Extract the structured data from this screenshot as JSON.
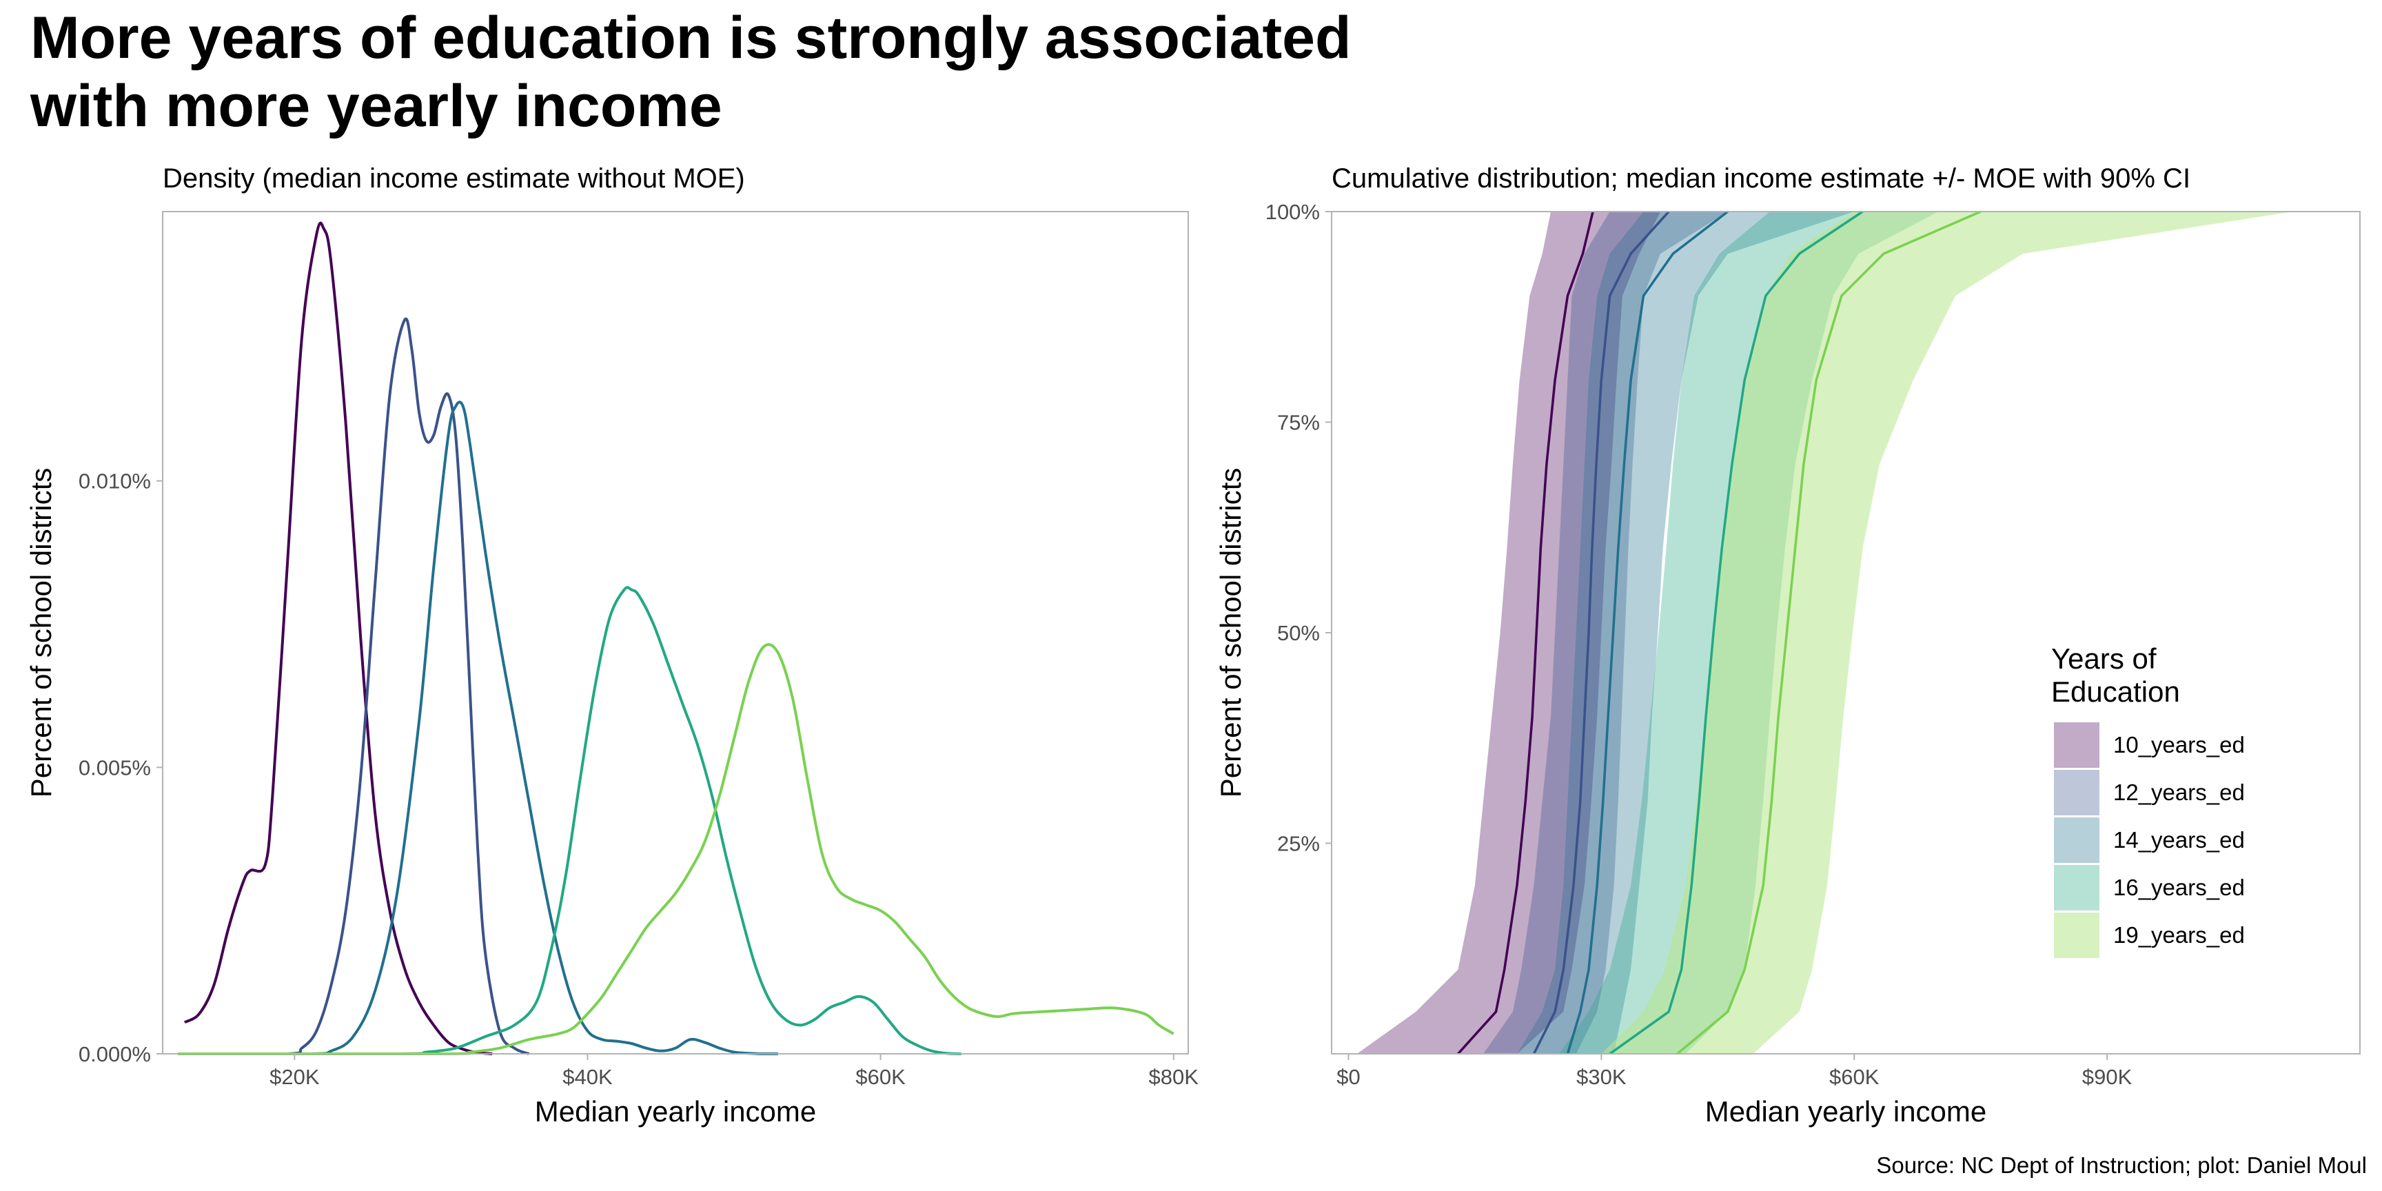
{
  "title": {
    "line1": "More years of education is strongly associated",
    "line2": "with more yearly income"
  },
  "source": "Source: NC Dept of Instruction; plot: Daniel Moul",
  "legend": {
    "title_line1": "Years of",
    "title_line2": "Education",
    "position": "right, inside cumulative panel"
  },
  "colors": {
    "10_years_ed": "#440154",
    "12_years_ed": "#3b528b",
    "14_years_ed": "#21708e",
    "16_years_ed": "#22a884",
    "19_years_ed": "#7ad151",
    "line_19_years_ed": "#7ad151",
    "ribbon_19_years_ed": "#b8e68c"
  },
  "chart_data": [
    {
      "type": "line",
      "subtitle": "Density (median income estimate without MOE)",
      "xlabel": "Median yearly income",
      "ylabel": "Percent of school districts",
      "xlim": [
        11000,
        81000
      ],
      "ylim": [
        0,
        1.47e-05
      ],
      "grid": false,
      "x_ticks": [
        20000,
        40000,
        60000,
        80000
      ],
      "x_tick_labels": [
        "$20K",
        "$40K",
        "$60K",
        "$80K"
      ],
      "y_ticks": [
        0,
        5e-06,
        1e-05
      ],
      "y_tick_labels": [
        "0.000%",
        "0.005%",
        "0.010%"
      ],
      "series": [
        {
          "name": "10_years_ed",
          "x": [
            12500,
            13500,
            14500,
            15500,
            16500,
            17000,
            18000,
            18500,
            19500,
            20500,
            21500,
            22000,
            22500,
            23500,
            24500,
            25500,
            26500,
            27500,
            28500,
            29500,
            30500,
            31500,
            32500,
            33500
          ],
          "values": [
            5.5e-07,
            7e-07,
            1.2e-06,
            2.2e-06,
            3e-06,
            3.2e-06,
            3.3e-06,
            4.5e-06,
            8.5e-06,
            1.25e-05,
            1.43e-05,
            1.44e-05,
            1.38e-05,
            1.1e-05,
            7.3e-06,
            4.2e-06,
            2.5e-06,
            1.5e-06,
            9e-07,
            5e-07,
            2e-07,
            8e-08,
            2e-08,
            0
          ]
        },
        {
          "name": "12_years_ed",
          "x": [
            19500,
            20500,
            21500,
            22500,
            23500,
            24500,
            25500,
            26500,
            27500,
            28000,
            28500,
            29000,
            29500,
            30000,
            30500,
            31000,
            31500,
            32000,
            32500,
            33000,
            34000,
            35000,
            36000
          ],
          "values": [
            0,
            1e-07,
            4e-07,
            1.2e-06,
            2.5e-06,
            4.8e-06,
            8.2e-06,
            1.15e-05,
            1.28e-05,
            1.23e-05,
            1.12e-05,
            1.07e-05,
            1.08e-05,
            1.13e-05,
            1.15e-05,
            1.08e-05,
            8.8e-06,
            6.2e-06,
            3.6e-06,
            1.8e-06,
            4e-07,
            1e-07,
            0
          ]
        },
        {
          "name": "14_years_ed",
          "x": [
            21000,
            22500,
            24000,
            25500,
            27000,
            28500,
            29500,
            30500,
            31000,
            31500,
            32000,
            33000,
            34000,
            35000,
            36000,
            37000,
            38000,
            39000,
            40000,
            41000,
            42000,
            43000,
            44000,
            45000,
            46000,
            47000,
            48000,
            49000,
            50000,
            51000,
            52000,
            53000
          ],
          "values": [
            0,
            5e-08,
            3e-07,
            1.1e-06,
            2.8e-06,
            5.8e-06,
            8.5e-06,
            1.08e-05,
            1.13e-05,
            1.13e-05,
            1.06e-05,
            8.8e-06,
            7.2e-06,
            5.8e-06,
            4.4e-06,
            3e-06,
            1.8e-06,
            9e-07,
            4e-07,
            2.5e-07,
            2.2e-07,
            1.8e-07,
            1e-07,
            5e-08,
            1e-07,
            2.5e-07,
            2e-07,
            1e-07,
            3e-08,
            1e-08,
            0,
            0
          ]
        },
        {
          "name": "16_years_ed",
          "x": [
            27000,
            29000,
            31000,
            33000,
            35000,
            36500,
            37500,
            38500,
            39500,
            40500,
            41500,
            42500,
            43000,
            43500,
            44500,
            45500,
            46500,
            47500,
            48500,
            49500,
            50500,
            51500,
            52500,
            53500,
            54500,
            55500,
            56500,
            57500,
            58500,
            59500,
            60500,
            61500,
            62500,
            63500,
            64500,
            65500
          ],
          "values": [
            0,
            3e-08,
            1e-07,
            3e-07,
            5e-07,
            9e-07,
            1.8e-06,
            3.1e-06,
            4.8e-06,
            6.4e-06,
            7.6e-06,
            8.1e-06,
            8.1e-06,
            8e-06,
            7.5e-06,
            6.8e-06,
            6.1e-06,
            5.4e-06,
            4.5e-06,
            3.4e-06,
            2.4e-06,
            1.5e-06,
            9e-07,
            6e-07,
            5e-07,
            6e-07,
            8e-07,
            9e-07,
            1e-06,
            9e-07,
            6e-07,
            3e-07,
            1.5e-07,
            5e-08,
            1e-08,
            0
          ]
        },
        {
          "name": "19_years_ed",
          "x": [
            30000,
            32000,
            34000,
            36000,
            38000,
            39000,
            40000,
            41000,
            42000,
            43000,
            44000,
            45000,
            46000,
            47000,
            48000,
            49000,
            50000,
            51000,
            52000,
            53000,
            54000,
            55000,
            56000,
            57000,
            58000,
            59000,
            60000,
            61000,
            62000,
            63000,
            64000,
            65000,
            66000,
            67000,
            68000,
            69000,
            70000,
            72000,
            74000,
            76000,
            78000,
            79000,
            80000
          ],
          "values": [
            0,
            3e-08,
            1e-07,
            2.5e-07,
            3.5e-07,
            4.5e-07,
            7e-07,
            1e-06,
            1.4e-06,
            1.8e-06,
            2.2e-06,
            2.5e-06,
            2.8e-06,
            3.2e-06,
            3.7e-06,
            4.5e-06,
            5.5e-06,
            6.5e-06,
            7.1e-06,
            7e-06,
            6.2e-06,
            4.8e-06,
            3.5e-06,
            2.9e-06,
            2.7e-06,
            2.6e-06,
            2.5e-06,
            2.3e-06,
            2e-06,
            1.7e-06,
            1.3e-06,
            1e-06,
            8e-07,
            7e-07,
            6.5e-07,
            7e-07,
            7.2e-07,
            7.5e-07,
            7.8e-07,
            8e-07,
            7e-07,
            5e-07,
            3.5e-07
          ]
        }
      ]
    },
    {
      "type": "area",
      "subtitle": "Cumulative distribution; median income estimate +/- MOE with 90% CI",
      "xlabel": "Median yearly income",
      "ylabel": "Percent of school districts",
      "xlim": [
        -2000,
        120000
      ],
      "ylim": [
        0.0,
        1.0
      ],
      "grid": false,
      "x_ticks": [
        0,
        30000,
        60000,
        90000
      ],
      "x_tick_labels": [
        "$0",
        "$30K",
        "$60K",
        "$90K"
      ],
      "y_ticks": [
        0.25,
        0.5,
        0.75,
        1.0
      ],
      "y_tick_labels": [
        "25%",
        "50%",
        "75%",
        "100%"
      ],
      "y_levels": [
        0.0,
        0.05,
        0.1,
        0.2,
        0.3,
        0.4,
        0.5,
        0.6,
        0.7,
        0.8,
        0.9,
        0.95,
        1.0
      ],
      "series": [
        {
          "name": "10_years_ed",
          "median": [
            13000,
            17500,
            18500,
            20000,
            21000,
            21800,
            22300,
            22800,
            23500,
            24500,
            26000,
            27800,
            29000
          ],
          "lower": [
            1000,
            8000,
            13000,
            15000,
            16000,
            17000,
            18000,
            18800,
            19500,
            20300,
            21500,
            23000,
            24000
          ],
          "upper": [
            20000,
            25500,
            26500,
            28000,
            28800,
            29500,
            30000,
            30500,
            31200,
            31800,
            32500,
            34500,
            37000
          ]
        },
        {
          "name": "12_years_ed",
          "median": [
            22000,
            24500,
            25500,
            26700,
            27500,
            28000,
            28500,
            28900,
            29400,
            30000,
            31000,
            33500,
            38000
          ],
          "lower": [
            16000,
            19500,
            20500,
            22000,
            23000,
            24000,
            24500,
            25000,
            25500,
            26000,
            26500,
            28000,
            31000
          ],
          "upper": [
            27000,
            29500,
            30500,
            31500,
            32000,
            32400,
            32800,
            33200,
            33700,
            34300,
            35000,
            37000,
            45000
          ]
        },
        {
          "name": "14_years_ed",
          "median": [
            26000,
            27500,
            28500,
            29500,
            30200,
            30800,
            31400,
            32000,
            32700,
            33500,
            35000,
            38500,
            45000
          ],
          "lower": [
            20000,
            23000,
            24500,
            25500,
            26000,
            26500,
            27000,
            27500,
            28000,
            28500,
            29500,
            31000,
            35000
          ],
          "upper": [
            31500,
            32500,
            33500,
            34500,
            35500,
            36000,
            36700,
            37300,
            38300,
            39500,
            41500,
            45000,
            60000
          ]
        },
        {
          "name": "16_years_ed",
          "median": [
            31000,
            38000,
            39500,
            40700,
            41600,
            42400,
            43300,
            44300,
            45500,
            47000,
            49500,
            53500,
            61000
          ],
          "lower": [
            25000,
            28500,
            31000,
            33500,
            34800,
            35800,
            36800,
            37700,
            38500,
            39500,
            41000,
            44000,
            50000
          ],
          "upper": [
            40000,
            45000,
            47000,
            48300,
            49200,
            50000,
            50800,
            51800,
            53000,
            55000,
            57500,
            60500,
            70000
          ]
        },
        {
          "name": "19_years_ed",
          "median": [
            39000,
            45000,
            47000,
            49200,
            50200,
            51000,
            52000,
            53000,
            54000,
            55500,
            58500,
            63500,
            75000
          ],
          "lower": [
            30000,
            35000,
            37500,
            40000,
            41300,
            42300,
            43300,
            44300,
            45500,
            47000,
            49500,
            52500,
            60000
          ],
          "upper": [
            48000,
            53500,
            55000,
            56800,
            57800,
            58700,
            59800,
            61000,
            63000,
            67000,
            72000,
            80000,
            112000
          ]
        }
      ]
    }
  ]
}
